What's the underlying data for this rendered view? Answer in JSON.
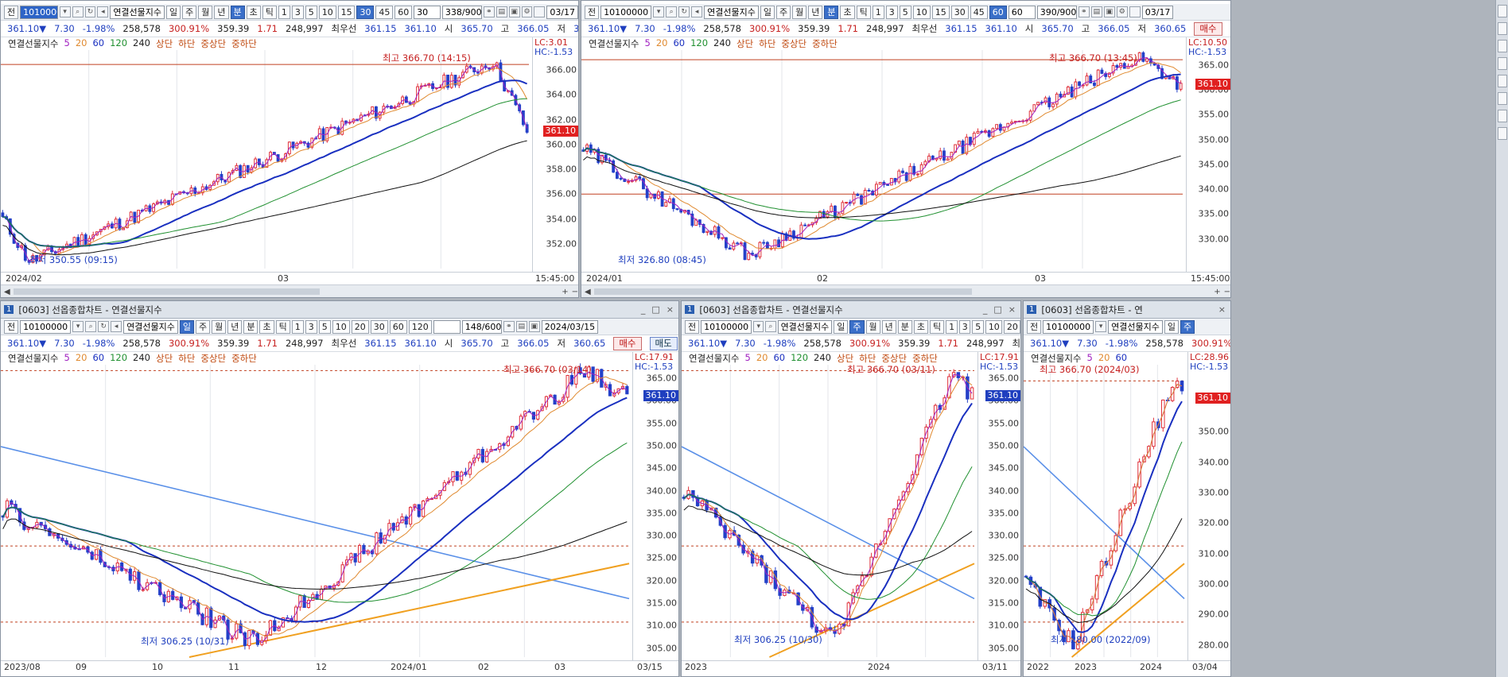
{
  "common": {
    "code": "10100000",
    "instrument": "연결선물지수",
    "price": "361.10▼",
    "change": "7.30",
    "change_pct": "-1.98%",
    "volume": "258,578",
    "vol_pct": "300.91%",
    "p1": "359.39",
    "p2": "1.71",
    "p3": "248,997",
    "best_label": "최우선",
    "ask": "361.15",
    "bid": "361.10",
    "open_label": "시",
    "open": "365.70",
    "high_label": "고",
    "high": "366.05",
    "low_label": "저",
    "low": "360.65",
    "sell": "매수",
    "buy": "매도",
    "ma_label": "연결선물지수",
    "ma": [
      "5",
      "20",
      "60",
      "120",
      "240"
    ],
    "bands": [
      "상단",
      "하단",
      "중상단",
      "중하단"
    ],
    "jeon": "전",
    "window_title": "[0603] 선옵종합차트 - 연결선물지수",
    "window_title_short": "[0603] 선옵종합차트 - 연",
    "window_num": "1",
    "last_box": "361.10",
    "colors": {
      "up": "#e0303a",
      "down": "#2440c8",
      "ma5": "#a020c0",
      "ma20": "#e08a30",
      "ma60": "#1a30c0",
      "ma120": "#209030",
      "ma240": "#111111"
    }
  },
  "panels": [
    {
      "id": "p1",
      "periods": [
        "일",
        "주",
        "월",
        "년",
        "분",
        "초",
        "틱"
      ],
      "active_period": "분",
      "intervals": [
        "1",
        "3",
        "5",
        "10",
        "15",
        "30",
        "45",
        "60"
      ],
      "active_interval": "30",
      "interval_value": "30",
      "count": "338/900",
      "date": "03/17",
      "lc": "LC:3.01",
      "hc": "HC:-1.53",
      "yticks": [
        "366.00",
        "364.00",
        "362.00",
        "360.00",
        "358.00",
        "356.00",
        "354.00",
        "352.00"
      ],
      "xlabels": [
        "2024/02",
        "03",
        "15:45:00"
      ],
      "hi_note": "최고 366.70 (14:15)",
      "lo_note": "최저 350.55 (09:15)"
    },
    {
      "id": "p2",
      "periods": [
        "일",
        "주",
        "월",
        "년",
        "분",
        "초",
        "틱"
      ],
      "active_period": "분",
      "intervals": [
        "1",
        "3",
        "5",
        "10",
        "15",
        "30",
        "45",
        "60"
      ],
      "active_interval": "60",
      "interval_value": "60",
      "count": "390/900",
      "date": "03/17",
      "lc": "LC:10.50",
      "hc": "HC:-1.53",
      "yticks": [
        "365.00",
        "360.00",
        "355.00",
        "350.00",
        "345.00",
        "340.00",
        "335.00",
        "330.00"
      ],
      "xlabels": [
        "2024/01",
        "02",
        "03",
        "15:45:00"
      ],
      "hi_note": "최고 366.70 (13:45)",
      "lo_note": "최저 326.80 (08:45)"
    },
    {
      "id": "p3",
      "periods": [
        "일",
        "주",
        "월",
        "년",
        "분",
        "초",
        "틱"
      ],
      "active_period": "일",
      "intervals": [
        "1",
        "3",
        "5",
        "10",
        "20",
        "30",
        "60",
        "120"
      ],
      "active_interval": "",
      "interval_value": "",
      "count": "148/600",
      "date": "2024/03/15",
      "lc": "LC:17.91",
      "hc": "HC:-1.53",
      "yticks": [
        "365.00",
        "360.00",
        "355.00",
        "350.00",
        "345.00",
        "340.00",
        "335.00",
        "330.00",
        "325.00",
        "320.00",
        "315.00",
        "310.00",
        "305.00"
      ],
      "xlabels": [
        "2023/08",
        "09",
        "10",
        "11",
        "12",
        "2024/01",
        "02",
        "03",
        "03/15"
      ],
      "hi_note": "최고 366.70 (03/14)",
      "lo_note": "최저 306.25 (10/31)"
    },
    {
      "id": "p4",
      "periods": [
        "일",
        "주",
        "월",
        "년",
        "분",
        "초",
        "틱"
      ],
      "active_period": "주",
      "intervals": [
        "1",
        "3",
        "5",
        "10",
        "20"
      ],
      "active_interval": "",
      "lc": "LC:17.91",
      "hc": "HC:-1.53",
      "yticks": [
        "365.00",
        "360.00",
        "355.00",
        "350.00",
        "345.00",
        "340.00",
        "335.00",
        "330.00",
        "325.00",
        "320.00",
        "315.00",
        "310.00",
        "305.00"
      ],
      "xlabels": [
        "2023",
        "2024",
        "03/11"
      ],
      "hi_note": "최고 366.70 (03/11)",
      "lo_note": "최저 306.25 (10/30)"
    },
    {
      "id": "p5",
      "periods": [
        "일",
        "주"
      ],
      "active_period": "주",
      "lc": "LC:28.96",
      "hc": "HC:-1.53",
      "yticks": [
        "350.00",
        "340.00",
        "330.00",
        "320.00",
        "310.00",
        "300.00",
        "290.00",
        "280.00"
      ],
      "xlabels": [
        "2022",
        "2023",
        "2024",
        "03/04"
      ],
      "hi_note": "최고 366.70 (2024/03)",
      "lo_note": "최저 280.00 (2022/09)"
    }
  ]
}
